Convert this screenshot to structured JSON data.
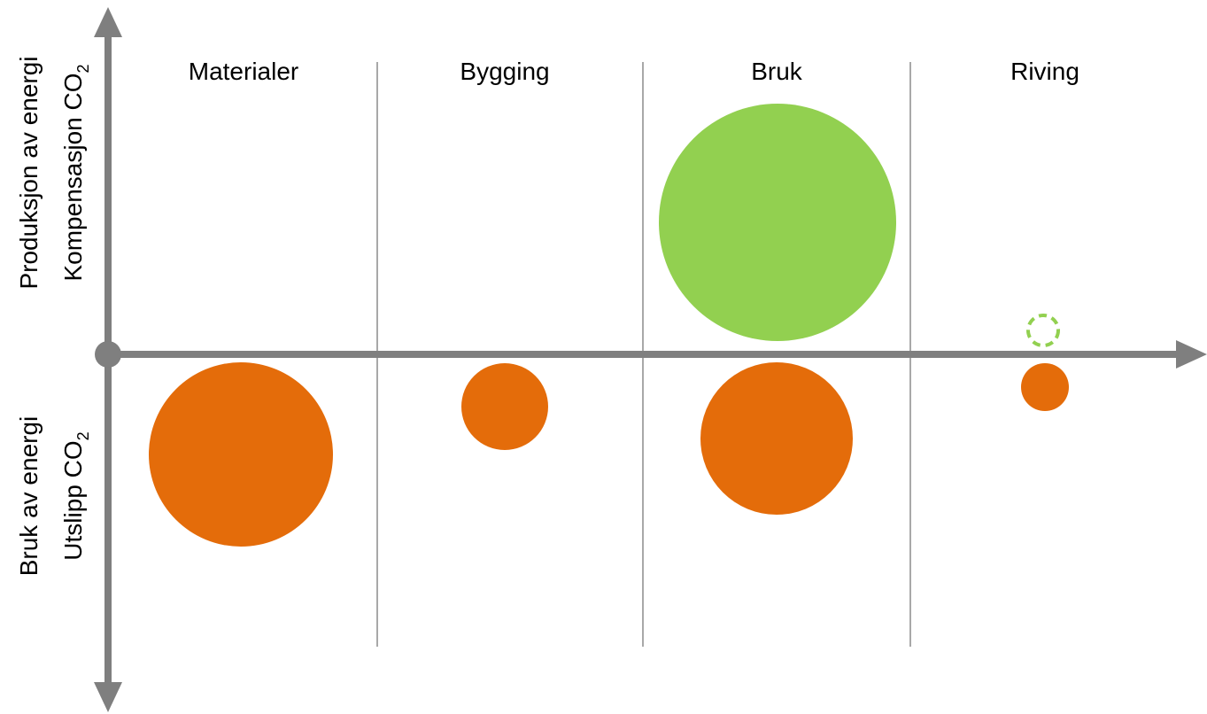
{
  "columns": [
    "Materialer",
    "Bygging",
    "Bruk",
    "Riving"
  ],
  "axis_top": {
    "line1": "Produksjon av energi",
    "line2": "Kompensasjon  CO",
    "line2_sub": "2"
  },
  "axis_bottom": {
    "line1": "Bruk av energi",
    "line2": "Utslipp CO",
    "line2_sub": "2"
  }
}
